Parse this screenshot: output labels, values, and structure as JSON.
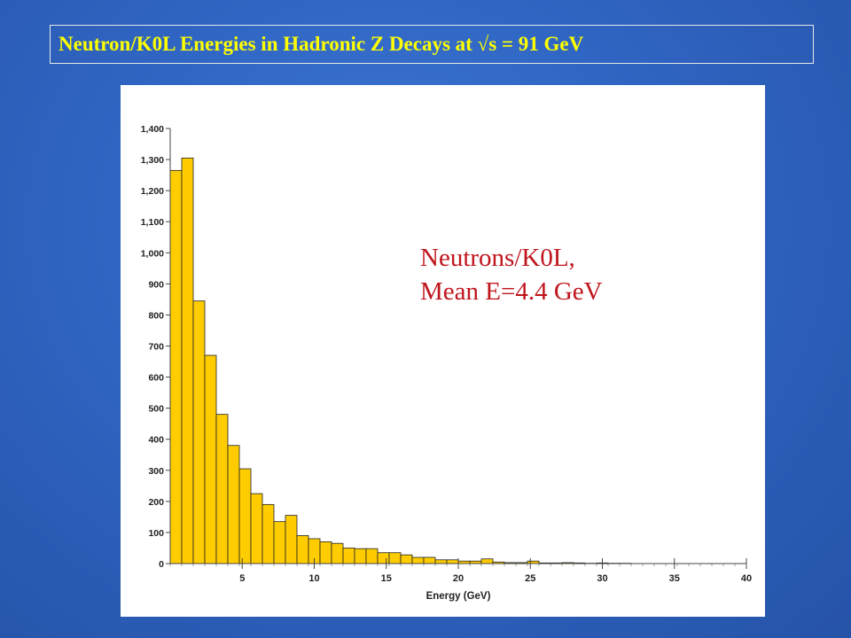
{
  "slide": {
    "title": "Neutron/K0L Energies in Hadronic Z Decays at √s = 91 GeV",
    "annotation_line1": "Neutrons/K0L,",
    "annotation_line2": "Mean E=4.4 GeV"
  },
  "colors": {
    "bar_fill": "#ffcc00",
    "bar_stroke": "#222222",
    "title_text": "#ffff00",
    "annotation_text": "#c0141c",
    "background": "#2f66c8"
  },
  "chart_data": {
    "type": "bar",
    "title": "",
    "xlabel": "Energy (GeV)",
    "ylabel": "",
    "xlim": [
      0,
      40
    ],
    "ylim": [
      0,
      1400
    ],
    "bin_width": 0.8,
    "x_ticks": [
      5,
      10,
      15,
      20,
      25,
      30,
      35,
      40
    ],
    "y_ticks": [
      0,
      100,
      200,
      300,
      400,
      500,
      600,
      700,
      800,
      900,
      1000,
      1100,
      1200,
      1300,
      1400
    ],
    "y_tick_labels": [
      "0",
      "100",
      "200",
      "300",
      "400",
      "500",
      "600",
      "700",
      "800",
      "900",
      "1,000",
      "1,100",
      "1,200",
      "1,300",
      "1,400"
    ],
    "x_tick_labels": [
      "5",
      "10",
      "15",
      "20",
      "25",
      "30",
      "35",
      "40"
    ],
    "bin_starts": [
      0,
      0.8,
      1.6,
      2.4,
      3.2,
      4.0,
      4.8,
      5.6,
      6.4,
      7.2,
      8.0,
      8.8,
      9.6,
      10.4,
      11.2,
      12.0,
      12.8,
      13.6,
      14.4,
      15.2,
      16.0,
      16.8,
      17.6,
      18.4,
      19.2,
      20.0,
      20.8,
      21.6,
      22.4,
      23.2,
      24.0,
      24.8,
      25.6,
      26.4,
      27.2,
      28.0,
      28.8,
      29.6,
      30.4,
      31.2
    ],
    "values": [
      1265,
      1305,
      845,
      670,
      480,
      380,
      305,
      225,
      190,
      135,
      155,
      90,
      80,
      70,
      65,
      50,
      48,
      48,
      35,
      35,
      28,
      20,
      20,
      12,
      12,
      8,
      8,
      15,
      5,
      3,
      3,
      8,
      2,
      2,
      3,
      2,
      1,
      2,
      1,
      1
    ],
    "grid": false
  }
}
